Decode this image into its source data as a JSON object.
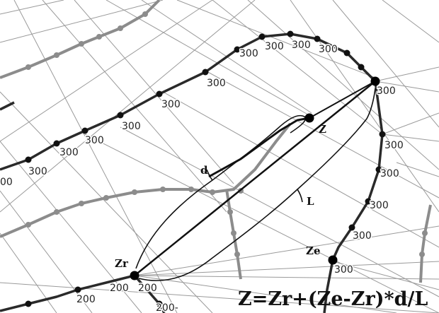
{
  "labels": {
    "contour_value": "300",
    "contour_value_low": "200",
    "contour_partial": "00",
    "contour_partial_low": "200-",
    "point_z": "Z",
    "point_zr": "Zr",
    "point_ze": "Ze",
    "distance_d": "d",
    "distance_l": "L",
    "formula": "Z=Zr+(Ze-Zr)*d/L"
  },
  "colors": {
    "contour_dark": "#2a2a2a",
    "contour_gray": "#8c8c8c",
    "ray": "#9a9a9a",
    "node": "#111111"
  }
}
